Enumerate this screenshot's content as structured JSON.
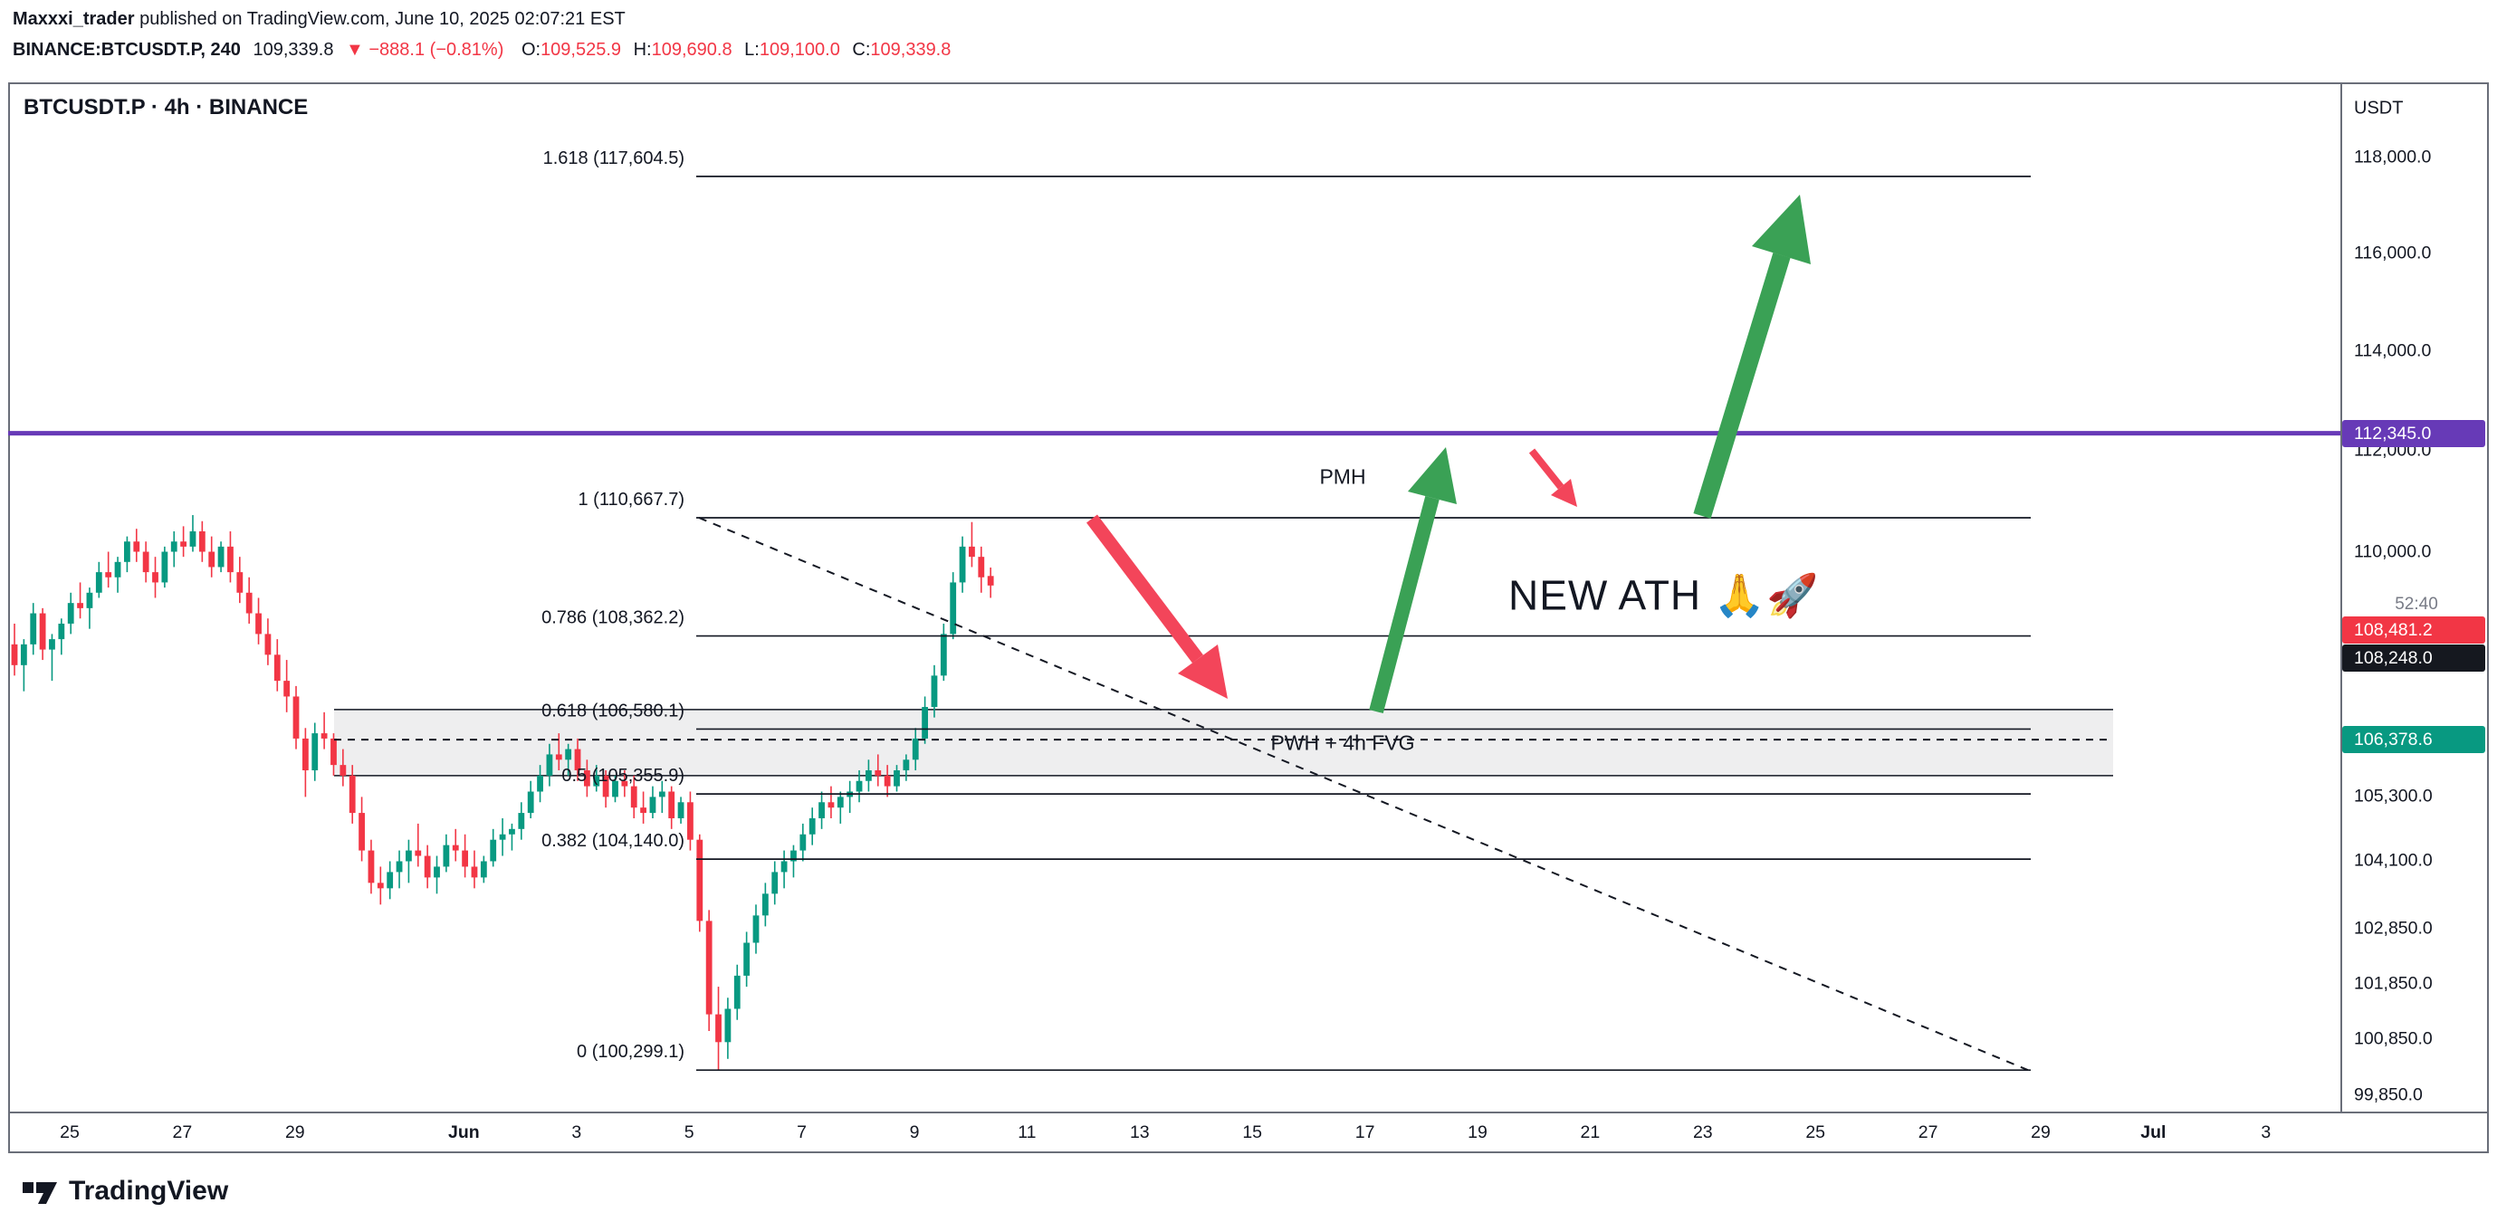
{
  "colors": {
    "text": "#131722",
    "muted": "#787b86",
    "frame": "#6a6e79",
    "candle-up": "#089981",
    "candle-down": "#f23645",
    "line-dark": "#131722",
    "badge-purple": "#673ab7",
    "badge-red": "#f23645",
    "badge-black": "#15181f",
    "badge-teal": "#089981",
    "accent-purple": "#673ab7",
    "arrow-green": "#3aa155",
    "arrow-red": "#f3455a",
    "zone-fill": "rgba(120,123,134,0.13)"
  },
  "header": {
    "publisher": "Maxxxi_trader",
    "publisher_suffix": " published on TradingView.com, June 10, 2025 02:07:21 EST",
    "symbol_line": {
      "symbol": "BINANCE:BTCUSDT.P, 240",
      "last": "109,339.8",
      "change": "▼ −888.1 (−0.81%)",
      "open_label": "O:",
      "open": "109,525.9",
      "high_label": "H:",
      "high": "109,690.8",
      "low_label": "L:",
      "low": "109,100.0",
      "close_label": "C:",
      "close": "109,339.8"
    }
  },
  "chart": {
    "title": "BTCUSDT.P · 4h · BINANCE",
    "currency": "USDT",
    "countdown": "52:40"
  },
  "annotations": {
    "pmh": "PMH",
    "new_ath": "NEW ATH 🙏🚀"
  },
  "price_axis": {
    "labels": [
      {
        "text": "118,000.0",
        "price": 118000
      },
      {
        "text": "116,000.0",
        "price": 116000
      },
      {
        "text": "114,000.0",
        "price": 114000
      },
      {
        "text": "112,000.0",
        "price": 112000
      },
      {
        "text": "110,000.0",
        "price": 110000
      },
      {
        "text": "105,300.0",
        "price": 105300
      },
      {
        "text": "104,100.0",
        "price": 104100
      },
      {
        "text": "102,850.0",
        "price": 102850
      },
      {
        "text": "101,850.0",
        "price": 101850
      },
      {
        "text": "100,850.0",
        "price": 100850
      },
      {
        "text": "99,850.0",
        "price": 99850
      }
    ],
    "badges": [
      {
        "text": "112,345.0",
        "price": 112345,
        "color": "badge-purple"
      },
      {
        "text": "108,481.2",
        "price": 108481.2,
        "color": "badge-red"
      },
      {
        "text": "108,248.0",
        "price": 108481.2,
        "offset": 31,
        "color": "badge-black"
      },
      {
        "text": "106,378.6",
        "price": 106378.6,
        "color": "badge-teal"
      }
    ]
  },
  "time_axis": {
    "ticks": [
      {
        "label": "25",
        "d": 0
      },
      {
        "label": "27",
        "d": 2
      },
      {
        "label": "29",
        "d": 4
      },
      {
        "label": "Jun",
        "d": 7,
        "bold": true
      },
      {
        "label": "3",
        "d": 9
      },
      {
        "label": "5",
        "d": 11
      },
      {
        "label": "7",
        "d": 13
      },
      {
        "label": "9",
        "d": 15
      },
      {
        "label": "11",
        "d": 17
      },
      {
        "label": "13",
        "d": 19
      },
      {
        "label": "15",
        "d": 21
      },
      {
        "label": "17",
        "d": 23
      },
      {
        "label": "19",
        "d": 25
      },
      {
        "label": "21",
        "d": 27
      },
      {
        "label": "23",
        "d": 29
      },
      {
        "label": "25",
        "d": 31
      },
      {
        "label": "27",
        "d": 33
      },
      {
        "label": "29",
        "d": 35
      },
      {
        "label": "Jul",
        "d": 37,
        "bold": true
      },
      {
        "label": "3",
        "d": 39
      }
    ]
  },
  "footer": {
    "brand": "TradingView"
  },
  "chart_data": {
    "type": "candlestick",
    "symbol": "BTCUSDT.P",
    "exchange": "BINANCE",
    "interval": "4h",
    "price_scale": "log",
    "visible_price_range": [
      99850,
      118000
    ],
    "visible_date_range": [
      "May 24",
      "Jul 3"
    ],
    "candles": [
      [
        108200,
        108600,
        107600,
        107800
      ],
      [
        107800,
        108300,
        107300,
        108200
      ],
      [
        108200,
        109000,
        108000,
        108800
      ],
      [
        108800,
        108900,
        107900,
        108100
      ],
      [
        108100,
        108400,
        107500,
        108300
      ],
      [
        108300,
        108700,
        108000,
        108600
      ],
      [
        108600,
        109200,
        108400,
        109000
      ],
      [
        109000,
        109400,
        108700,
        108900
      ],
      [
        108900,
        109300,
        108500,
        109200
      ],
      [
        109200,
        109800,
        109100,
        109600
      ],
      [
        109600,
        110000,
        109300,
        109500
      ],
      [
        109500,
        109900,
        109200,
        109800
      ],
      [
        109800,
        110300,
        109600,
        110200
      ],
      [
        110200,
        110450,
        109800,
        110000
      ],
      [
        110000,
        110200,
        109400,
        109600
      ],
      [
        109600,
        109900,
        109100,
        109400
      ],
      [
        109400,
        110100,
        109300,
        110000
      ],
      [
        110000,
        110400,
        109700,
        110200
      ],
      [
        110200,
        110500,
        109900,
        110100
      ],
      [
        110100,
        110720,
        110000,
        110400
      ],
      [
        110400,
        110600,
        109800,
        110000
      ],
      [
        110000,
        110300,
        109500,
        109700
      ],
      [
        109700,
        110200,
        109600,
        110100
      ],
      [
        110100,
        110400,
        109400,
        109600
      ],
      [
        109600,
        109900,
        109000,
        109200
      ],
      [
        109200,
        109500,
        108600,
        108800
      ],
      [
        108800,
        109100,
        108200,
        108400
      ],
      [
        108400,
        108700,
        107800,
        108000
      ],
      [
        108000,
        108300,
        107300,
        107500
      ],
      [
        107500,
        107900,
        106900,
        107200
      ],
      [
        107200,
        107400,
        106200,
        106400
      ],
      [
        106400,
        106600,
        105300,
        105800
      ],
      [
        105800,
        106700,
        105600,
        106500
      ],
      [
        106500,
        106900,
        106200,
        106400
      ],
      [
        106400,
        106500,
        105700,
        105900
      ],
      [
        105900,
        106200,
        105500,
        105700
      ],
      [
        105700,
        105900,
        104800,
        105000
      ],
      [
        105000,
        105300,
        104100,
        104300
      ],
      [
        104300,
        104500,
        103500,
        103700
      ],
      [
        103700,
        104000,
        103300,
        103600
      ],
      [
        103600,
        104100,
        103400,
        103900
      ],
      [
        103900,
        104300,
        103600,
        104100
      ],
      [
        104100,
        104500,
        103700,
        104300
      ],
      [
        104300,
        104800,
        104000,
        104200
      ],
      [
        104200,
        104400,
        103600,
        103800
      ],
      [
        103800,
        104200,
        103500,
        104000
      ],
      [
        104000,
        104600,
        103900,
        104400
      ],
      [
        104400,
        104700,
        104100,
        104300
      ],
      [
        104300,
        104600,
        103800,
        104000
      ],
      [
        104000,
        104300,
        103600,
        103800
      ],
      [
        103800,
        104200,
        103700,
        104100
      ],
      [
        104100,
        104700,
        104000,
        104500
      ],
      [
        104500,
        104900,
        104200,
        104600
      ],
      [
        104600,
        104800,
        104300,
        104700
      ],
      [
        104700,
        105200,
        104500,
        105000
      ],
      [
        105000,
        105600,
        104900,
        105400
      ],
      [
        105400,
        105900,
        105200,
        105700
      ],
      [
        105700,
        106300,
        105500,
        106100
      ],
      [
        106100,
        106500,
        105800,
        106000
      ],
      [
        106000,
        106300,
        105700,
        106200
      ],
      [
        106200,
        106400,
        105600,
        105800
      ],
      [
        105800,
        106000,
        105300,
        105500
      ],
      [
        105500,
        105900,
        105400,
        105700
      ],
      [
        105700,
        105800,
        105100,
        105300
      ],
      [
        105300,
        105700,
        105200,
        105600
      ],
      [
        105600,
        105800,
        105300,
        105500
      ],
      [
        105500,
        105700,
        104900,
        105100
      ],
      [
        105100,
        105400,
        104800,
        105000
      ],
      [
        105000,
        105500,
        104900,
        105300
      ],
      [
        105300,
        105600,
        105000,
        105400
      ],
      [
        105400,
        105500,
        104700,
        104900
      ],
      [
        104900,
        105300,
        104800,
        105200
      ],
      [
        105200,
        105400,
        104300,
        104500
      ],
      [
        104500,
        104600,
        102800,
        103000
      ],
      [
        103000,
        103200,
        101000,
        101300
      ],
      [
        101300,
        101800,
        100299.1,
        100800
      ],
      [
        100800,
        101600,
        100500,
        101400
      ],
      [
        101400,
        102200,
        101200,
        102000
      ],
      [
        102000,
        102800,
        101800,
        102600
      ],
      [
        102600,
        103300,
        102400,
        103100
      ],
      [
        103100,
        103700,
        102900,
        103500
      ],
      [
        103500,
        104100,
        103300,
        103900
      ],
      [
        103900,
        104300,
        103600,
        104100
      ],
      [
        104100,
        104400,
        103800,
        104300
      ],
      [
        104300,
        104800,
        104100,
        104600
      ],
      [
        104600,
        105100,
        104400,
        104900
      ],
      [
        104900,
        105400,
        104700,
        105200
      ],
      [
        105200,
        105500,
        104900,
        105100
      ],
      [
        105100,
        105400,
        104800,
        105300
      ],
      [
        105300,
        105600,
        105000,
        105400
      ],
      [
        105400,
        105800,
        105200,
        105600
      ],
      [
        105600,
        106000,
        105400,
        105800
      ],
      [
        105800,
        106100,
        105500,
        105700
      ],
      [
        105700,
        105900,
        105300,
        105500
      ],
      [
        105500,
        105900,
        105400,
        105800
      ],
      [
        105800,
        106100,
        105600,
        106000
      ],
      [
        106000,
        106600,
        105800,
        106400
      ],
      [
        106400,
        107200,
        106300,
        107000
      ],
      [
        107000,
        107800,
        106800,
        107600
      ],
      [
        107600,
        108600,
        107500,
        108400
      ],
      [
        108400,
        109600,
        108300,
        109400
      ],
      [
        109400,
        110300,
        109200,
        110100
      ],
      [
        110100,
        110583,
        109700,
        109900
      ],
      [
        109900,
        110100,
        109200,
        109500
      ],
      [
        109525.9,
        109690.8,
        109100,
        109339.8
      ]
    ],
    "fib": {
      "levels": [
        {
          "level": 1.618,
          "label": "1.618 (117,604.5)",
          "price": 117604.5
        },
        {
          "level": 1,
          "label": "1 (110,667.7)",
          "price": 110667.7
        },
        {
          "level": 0.786,
          "label": "0.786 (108,362.2)",
          "price": 108362.2
        },
        {
          "level": 0.618,
          "label": "0.618 (106,580.1)",
          "price": 106580.1
        },
        {
          "level": 0.5,
          "label": "0.5 (105,355.9)",
          "price": 105355.9
        },
        {
          "level": 0.382,
          "label": "0.382 (104,140.0)",
          "price": 104140.0
        },
        {
          "level": 0,
          "label": "0 (100,299.1)",
          "price": 100299.1
        }
      ]
    },
    "horizontal_lines": [
      {
        "price": 112345.0,
        "style": "solid",
        "color": "accent-purple",
        "badge": "112,345.0"
      },
      {
        "price": 106378.6,
        "style": "dashed",
        "color": "line-dark",
        "badge": "106,378.6"
      }
    ],
    "zone": {
      "label": "PWH + 4h FVG",
      "top_price": 106950,
      "bottom_price": 105700
    },
    "trendline": {
      "style": "dashed",
      "from_price": 110667.7,
      "to_price": 100299.1
    },
    "arrow_annotations": [
      {
        "color": "red",
        "direction": "down-right",
        "size": "large"
      },
      {
        "color": "green",
        "direction": "up",
        "size": "medium"
      },
      {
        "color": "red",
        "direction": "down-right",
        "size": "small"
      },
      {
        "color": "green",
        "direction": "up-right",
        "size": "large"
      }
    ]
  }
}
